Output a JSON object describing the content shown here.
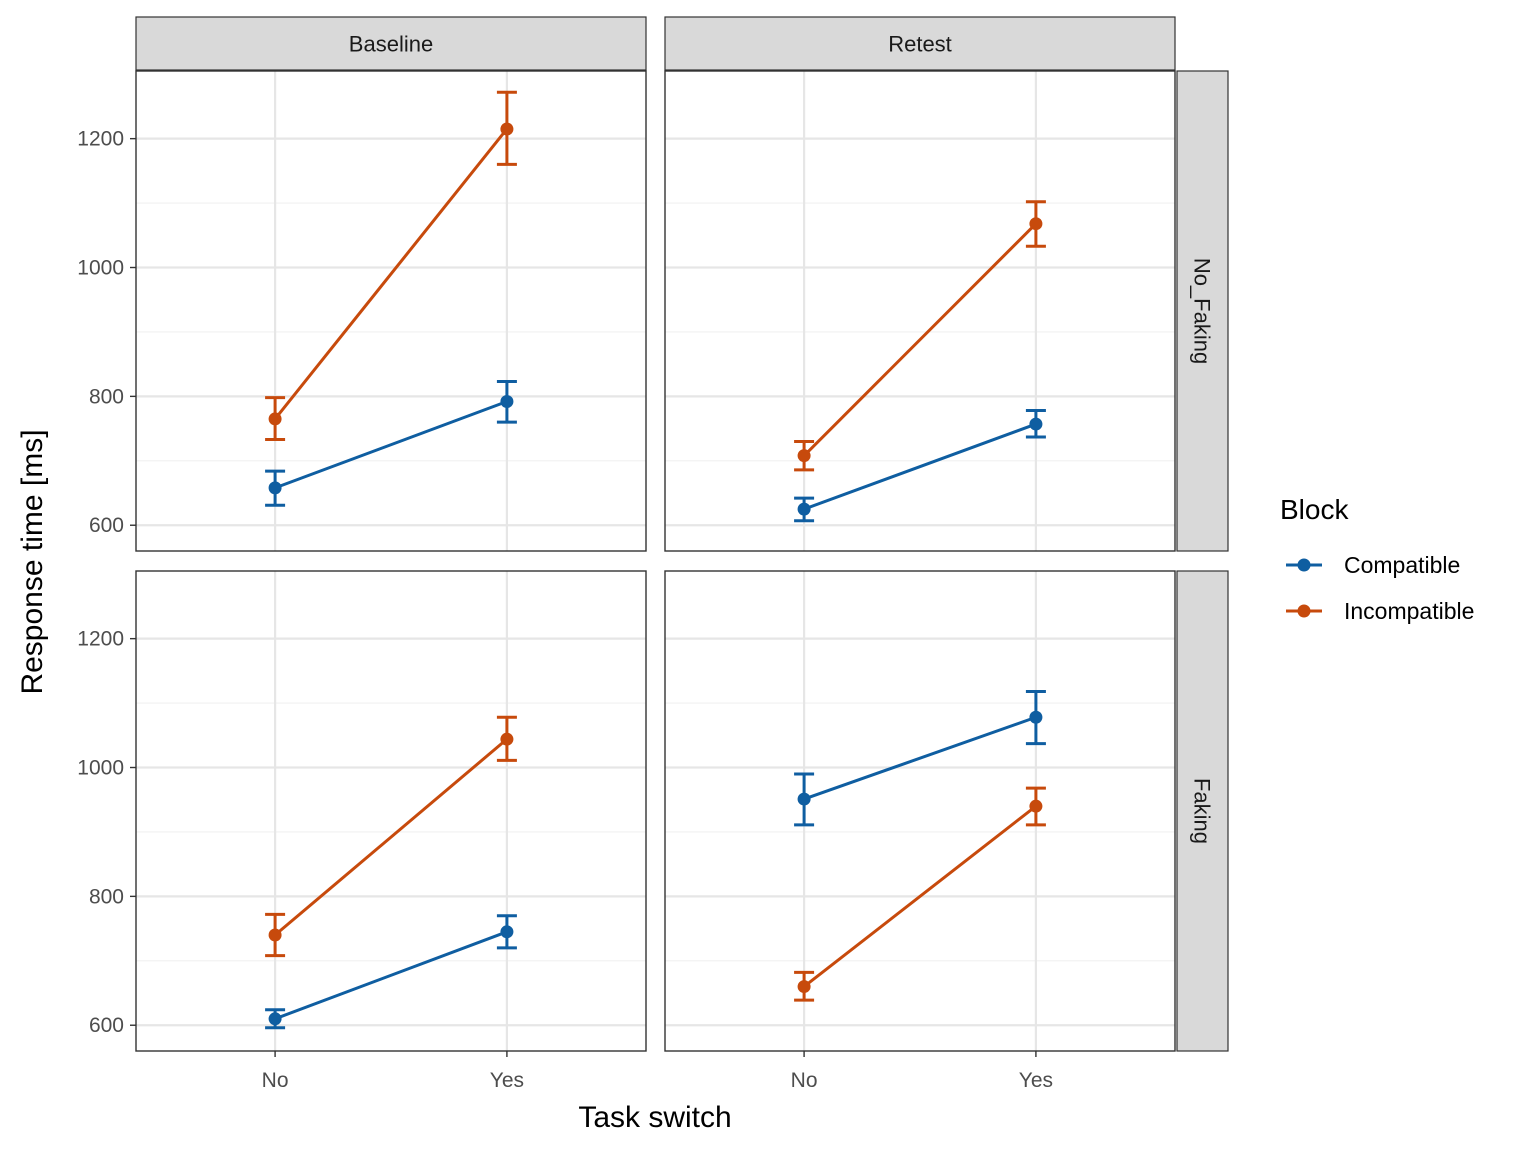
{
  "chart_data": {
    "type": "line",
    "facet_cols": [
      "Baseline",
      "Retest"
    ],
    "facet_rows": [
      "No_Faking",
      "Faking"
    ],
    "categories": [
      "No",
      "Yes"
    ],
    "xlabel": "Task switch",
    "ylabel": "Response time [ms]",
    "y_ticks": [
      600,
      800,
      1000,
      1200
    ],
    "ylim": [
      560,
      1305
    ],
    "grid": true,
    "legend": {
      "title": "Block",
      "position": "right",
      "entries": [
        "Compatible",
        "Incompatible"
      ]
    },
    "series_colors": {
      "Compatible": "#0f5ea1",
      "Incompatible": "#c74a0c"
    },
    "panels": [
      {
        "col": "Baseline",
        "row": "No_Faking",
        "series": [
          {
            "name": "Compatible",
            "values": [
              658,
              792
            ],
            "lower": [
              631,
              760
            ],
            "upper": [
              684,
              823
            ]
          },
          {
            "name": "Incompatible",
            "values": [
              765,
              1215
            ],
            "lower": [
              733,
              1160
            ],
            "upper": [
              798,
              1272
            ]
          }
        ]
      },
      {
        "col": "Retest",
        "row": "No_Faking",
        "series": [
          {
            "name": "Compatible",
            "values": [
              625,
              757
            ],
            "lower": [
              607,
              737
            ],
            "upper": [
              642,
              778
            ]
          },
          {
            "name": "Incompatible",
            "values": [
              708,
              1068
            ],
            "lower": [
              686,
              1033
            ],
            "upper": [
              730,
              1102
            ]
          }
        ]
      },
      {
        "col": "Baseline",
        "row": "Faking",
        "series": [
          {
            "name": "Compatible",
            "values": [
              610,
              745
            ],
            "lower": [
              596,
              720
            ],
            "upper": [
              624,
              770
            ]
          },
          {
            "name": "Incompatible",
            "values": [
              740,
              1044
            ],
            "lower": [
              708,
              1011
            ],
            "upper": [
              772,
              1078
            ]
          }
        ]
      },
      {
        "col": "Retest",
        "row": "Faking",
        "series": [
          {
            "name": "Compatible",
            "values": [
              951,
              1078
            ],
            "lower": [
              911,
              1037
            ],
            "upper": [
              990,
              1118
            ]
          },
          {
            "name": "Incompatible",
            "values": [
              660,
              940
            ],
            "lower": [
              639,
              911
            ],
            "upper": [
              682,
              968
            ]
          }
        ]
      }
    ]
  }
}
